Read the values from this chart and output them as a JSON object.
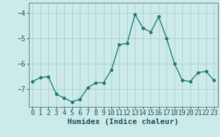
{
  "x": [
    0,
    1,
    2,
    3,
    4,
    5,
    6,
    7,
    8,
    9,
    10,
    11,
    12,
    13,
    14,
    15,
    16,
    17,
    18,
    19,
    20,
    21,
    22,
    23
  ],
  "y": [
    -6.7,
    -6.55,
    -6.5,
    -7.2,
    -7.35,
    -7.5,
    -7.4,
    -6.95,
    -6.75,
    -6.75,
    -6.25,
    -5.25,
    -5.2,
    -4.05,
    -4.6,
    -4.75,
    -4.15,
    -5.0,
    -6.0,
    -6.65,
    -6.7,
    -6.35,
    -6.3,
    -6.65
  ],
  "line_color": "#1a7a6e",
  "marker": "o",
  "marker_size": 2.5,
  "line_width": 1.0,
  "bg_color": "#cceaea",
  "grid_color": "#b0d0d0",
  "xlabel": "Humidex (Indice chaleur)",
  "ylim": [
    -7.7,
    -3.6
  ],
  "xlim": [
    -0.5,
    23.5
  ],
  "yticks": [
    -7,
    -6,
    -5,
    -4
  ],
  "xticks": [
    0,
    1,
    2,
    3,
    4,
    5,
    6,
    7,
    8,
    9,
    10,
    11,
    12,
    13,
    14,
    15,
    16,
    17,
    18,
    19,
    20,
    21,
    22,
    23
  ],
  "tick_color": "#1a5050",
  "spine_color": "#5a8080",
  "xlabel_fontsize": 8,
  "tick_fontsize": 7
}
